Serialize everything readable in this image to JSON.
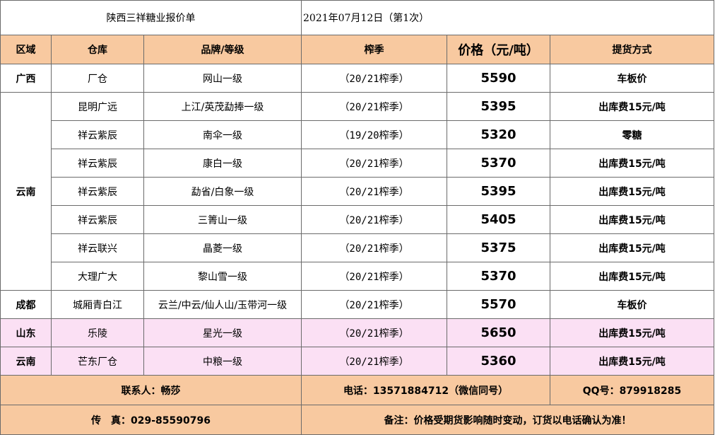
{
  "title": {
    "company": "陕西三祥糖业报价单",
    "date": "2021年07月12日（第1次）"
  },
  "headers": {
    "region": "区域",
    "warehouse": "仓库",
    "brand": "品牌/等级",
    "season": "榨季",
    "price": "价格（元/吨）",
    "pickup": "提货方式"
  },
  "rows": [
    {
      "region": "广西",
      "warehouse": "厂仓",
      "brand": "网山一级",
      "season": "（20/21榨季）",
      "price": "5590",
      "pickup": "车板价"
    },
    {
      "region": "云南",
      "warehouse": "昆明广远",
      "brand": "上江/英茂勐捧一级",
      "season": "（20/21榨季）",
      "price": "5395",
      "pickup": "出库费15元/吨"
    },
    {
      "warehouse": "祥云紫辰",
      "brand": "南伞一级",
      "season": "（19/20榨季）",
      "price": "5320",
      "pickup": "零糖"
    },
    {
      "warehouse": "祥云紫辰",
      "brand": "康白一级",
      "season": "（20/21榨季）",
      "price": "5370",
      "pickup": "出库费15元/吨"
    },
    {
      "warehouse": "祥云紫辰",
      "brand": "勐省/白象一级",
      "season": "（20/21榨季）",
      "price": "5395",
      "pickup": "出库费15元/吨"
    },
    {
      "warehouse": "祥云紫辰",
      "brand": "三箐山一级",
      "season": "（20/21榨季）",
      "price": "5405",
      "pickup": "出库费15元/吨"
    },
    {
      "warehouse": "祥云联兴",
      "brand": "晶菱一级",
      "season": "（20/21榨季）",
      "price": "5375",
      "pickup": "出库费15元/吨"
    },
    {
      "warehouse": "大理广大",
      "brand": "黎山雪一级",
      "season": "（20/21榨季）",
      "price": "5370",
      "pickup": "出库费15元/吨"
    },
    {
      "region": "成都",
      "warehouse": "城厢青白江",
      "brand": "云兰/中云/仙人山/玉带河一级",
      "season": "（20/21榨季）",
      "price": "5570",
      "pickup": "车板价"
    },
    {
      "region": "山东",
      "warehouse": "乐陵",
      "brand": "星光一级",
      "season": "（20/21榨季）",
      "price": "5650",
      "pickup": "出库费15元/吨"
    },
    {
      "region": "云南",
      "warehouse": "芒东厂仓",
      "brand": "中粮一级",
      "season": "（20/21榨季）",
      "price": "5360",
      "pickup": "出库费15元/吨"
    }
  ],
  "footer": {
    "contact": "联系人：畅莎",
    "phone": "电话：13571884712（微信同号）",
    "qq": "QQ号：879918285",
    "fax": "传　真：029-85590796",
    "note": "备注：价格受期货影响随时变动，订货以电话确认为准！"
  },
  "colors": {
    "header_bg": "#f8c9a0",
    "highlight_row_bg": "#fbe0f4",
    "grid": "#6b6b6b"
  }
}
